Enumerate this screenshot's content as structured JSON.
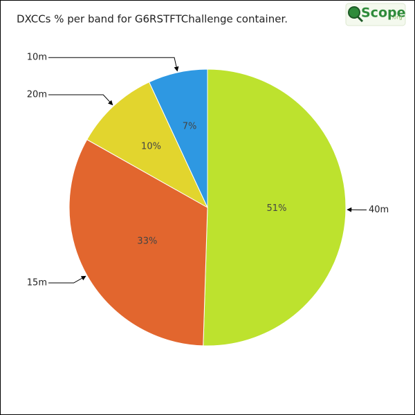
{
  "chart_data": {
    "type": "pie",
    "title": "DXCCs % per band for G6RSTFTChallenge container.",
    "categories": [
      "40m",
      "15m",
      "20m",
      "10m"
    ],
    "values": [
      51,
      33,
      10,
      7
    ],
    "value_labels": [
      "51%",
      "33%",
      "10%",
      "7%"
    ],
    "colors": [
      "#bde22e",
      "#e2662e",
      "#e2d52e",
      "#2e98e2"
    ],
    "logo": {
      "text": "Scope",
      "suffix": ".org"
    }
  }
}
